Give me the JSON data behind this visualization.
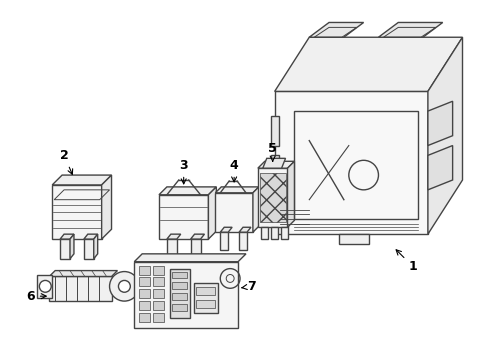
{
  "background_color": "#ffffff",
  "line_color": "#444444",
  "label_fontsize": 9,
  "figsize": [
    4.9,
    3.6
  ],
  "dpi": 100
}
